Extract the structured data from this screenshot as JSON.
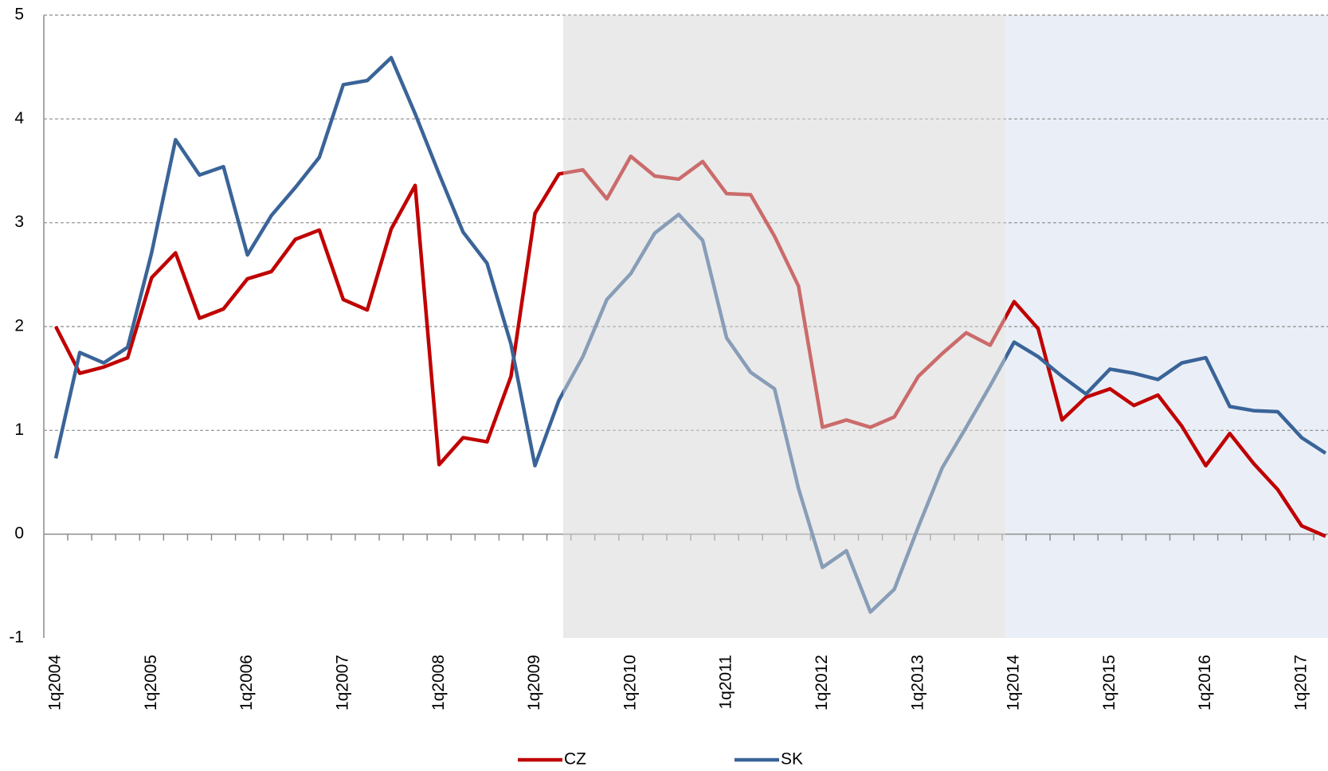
{
  "chart_data": {
    "type": "line",
    "categories": [
      "1q2004",
      null,
      null,
      null,
      "1q2005",
      null,
      null,
      null,
      "1q2006",
      null,
      null,
      null,
      "1q2007",
      null,
      null,
      null,
      "1q2008",
      null,
      null,
      null,
      "1q2009",
      null,
      null,
      null,
      "1q2010",
      null,
      null,
      null,
      "1q2011",
      null,
      null,
      null,
      "1q2012",
      null,
      null,
      null,
      "1q2013",
      null,
      null,
      null,
      "1q2014",
      null,
      null,
      null,
      "1q2015",
      null,
      null,
      null,
      "1q2016",
      null,
      null,
      null,
      "1q2017",
      null
    ],
    "series": [
      {
        "name": "CZ",
        "color": "#c00000",
        "values": [
          2.0,
          1.55,
          1.61,
          1.7,
          2.47,
          2.71,
          2.08,
          2.17,
          2.46,
          2.53,
          2.84,
          2.93,
          2.26,
          2.16,
          2.94,
          3.36,
          0.67,
          0.93,
          0.89,
          1.52,
          3.09,
          3.47,
          3.51,
          3.23,
          3.64,
          3.45,
          3.42,
          3.59,
          3.28,
          3.27,
          2.87,
          2.39,
          1.03,
          1.1,
          1.03,
          1.13,
          1.52,
          1.74,
          1.94,
          1.82,
          2.24,
          1.98,
          1.1,
          1.32,
          1.4,
          1.24,
          1.34,
          1.04,
          0.66,
          0.97,
          0.68,
          0.43,
          0.08,
          -0.02
        ]
      },
      {
        "name": "SK",
        "color": "#3a6498",
        "values": [
          0.73,
          1.75,
          1.65,
          1.8,
          2.71,
          3.8,
          3.46,
          3.54,
          2.69,
          3.07,
          3.34,
          3.63,
          4.33,
          4.37,
          4.59,
          4.05,
          3.47,
          2.91,
          2.61,
          1.83,
          0.66,
          1.29,
          1.71,
          2.26,
          2.51,
          2.9,
          3.08,
          2.83,
          1.89,
          1.56,
          1.4,
          0.44,
          -0.32,
          -0.16,
          -0.75,
          -0.53,
          0.07,
          0.64,
          1.03,
          1.43,
          1.85,
          1.71,
          1.52,
          1.35,
          1.59,
          1.55,
          1.49,
          1.65,
          1.7,
          1.23,
          1.19,
          1.18,
          0.93,
          0.78
        ]
      }
    ],
    "ylim": [
      -1,
      5
    ],
    "yticks": [
      -1,
      0,
      1,
      2,
      3,
      4,
      5
    ],
    "grid": true
  }
}
